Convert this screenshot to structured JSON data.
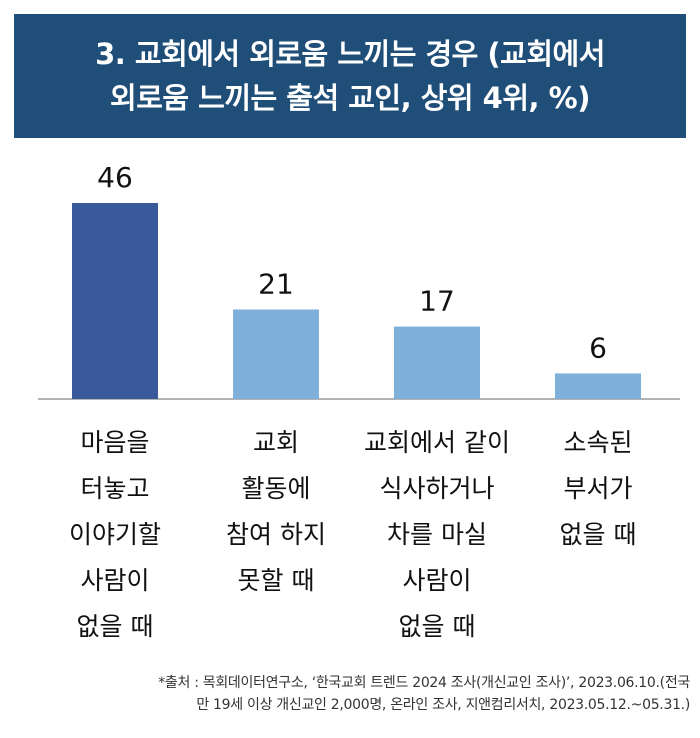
{
  "header": {
    "title_lines": [
      "3. 교회에서 외로움 느끼는 경우 (교회에서",
      "외로움 느끼는 출석 교인, 상위 4위, %)"
    ]
  },
  "chart_data": {
    "type": "bar",
    "title": "3. 교회에서 외로움 느끼는 경우 (교회에서 외로움 느끼는 출석 교인, 상위 4위, %)",
    "categories": [
      [
        "마음을",
        "터놓고",
        "이야기할",
        "사람이",
        "없을 때"
      ],
      [
        "교회",
        "활동에",
        "참여 하지",
        "못할 때"
      ],
      [
        "교회에서 같이",
        "식사하거나",
        "차를 마실",
        "사람이",
        "없을 때"
      ],
      [
        "소속된",
        "부서가",
        "없을 때"
      ]
    ],
    "values": [
      46,
      21,
      17,
      6
    ],
    "ylim": [
      0,
      46
    ],
    "colors": [
      "#3a5a9b",
      "#7fb0da",
      "#7fb0da",
      "#7fb0da"
    ],
    "grid": false,
    "legend": "none"
  },
  "footnote": {
    "lines": [
      "*출처 : 목회데이터연구소, ‘한국교회 트렌드 2024 조사(개신교인 조사)’, 2023.06.10.(전국",
      "만 19세 이상 개신교인 2,000명, 온라인 조사, 지앤컴리서치,  2023.05.12.~05.31.)"
    ]
  }
}
